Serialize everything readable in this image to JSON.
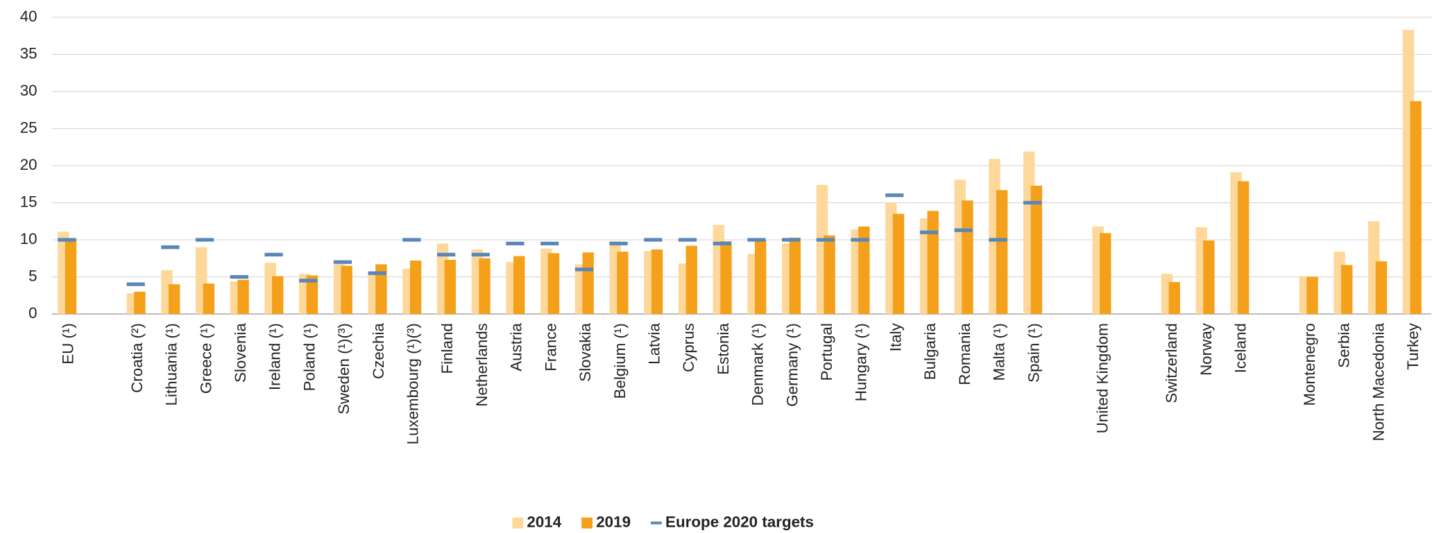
{
  "chart_data": {
    "type": "bar",
    "categories": [
      "EU (¹)",
      null,
      "Croatia (²)",
      "Lithuania (¹)",
      "Greece (¹)",
      "Slovenia",
      "Ireland (¹)",
      "Poland (¹)",
      "Sweden (¹)(³)",
      "Czechia",
      "Luxembourg (¹)(³)",
      "Finland",
      "Netherlands",
      "Austria",
      "France",
      "Slovakia",
      "Belgium (¹)",
      "Latvia",
      "Cyprus",
      "Estonia",
      "Denmark (¹)",
      "Germany (¹)",
      "Portugal",
      "Hungary (¹)",
      "Italy",
      "Bulgaria",
      "Romania",
      "Malta (¹)",
      "Spain (¹)",
      null,
      "United Kingdom",
      null,
      "Switzerland",
      "Norway",
      "Iceland",
      null,
      "Montenegro",
      "Serbia",
      "North Macedonia",
      "Turkey"
    ],
    "series": [
      {
        "name": "2014",
        "color": "#fdd89a",
        "values": [
          11.1,
          null,
          2.8,
          5.9,
          9.0,
          4.4,
          6.9,
          5.4,
          6.7,
          5.5,
          6.1,
          9.5,
          8.7,
          7.0,
          8.8,
          6.7,
          9.8,
          8.5,
          6.8,
          12.0,
          8.1,
          9.5,
          17.4,
          11.4,
          15.0,
          12.9,
          18.1,
          20.9,
          21.9,
          null,
          11.8,
          null,
          5.4,
          11.7,
          19.1,
          null,
          5.1,
          8.4,
          12.5,
          38.3
        ]
      },
      {
        "name": "2019",
        "color": "#f5a01a",
        "values": [
          10.2,
          null,
          3.0,
          4.0,
          4.1,
          4.6,
          5.1,
          5.2,
          6.5,
          6.7,
          7.2,
          7.3,
          7.5,
          7.8,
          8.2,
          8.3,
          8.4,
          8.7,
          9.2,
          9.8,
          9.9,
          10.3,
          10.6,
          11.8,
          13.5,
          13.9,
          15.3,
          16.7,
          17.3,
          null,
          10.9,
          null,
          4.3,
          9.9,
          17.9,
          null,
          5.0,
          6.6,
          7.1,
          28.7
        ]
      },
      {
        "name": "Europe 2020 targets",
        "color": "#5b86b8",
        "values": [
          10,
          null,
          4,
          9,
          10,
          5,
          8,
          4.5,
          7,
          5.5,
          10,
          8,
          8,
          9.5,
          9.5,
          6,
          9.5,
          10,
          10,
          9.5,
          10,
          10,
          10,
          10,
          16,
          11,
          11.3,
          10,
          15,
          null,
          null,
          null,
          null,
          null,
          null,
          null,
          null,
          null,
          null,
          null
        ]
      }
    ],
    "ylim": [
      0,
      40
    ],
    "yticks": [
      0,
      5,
      10,
      15,
      20,
      25,
      30,
      35,
      40
    ],
    "grid": true
  }
}
